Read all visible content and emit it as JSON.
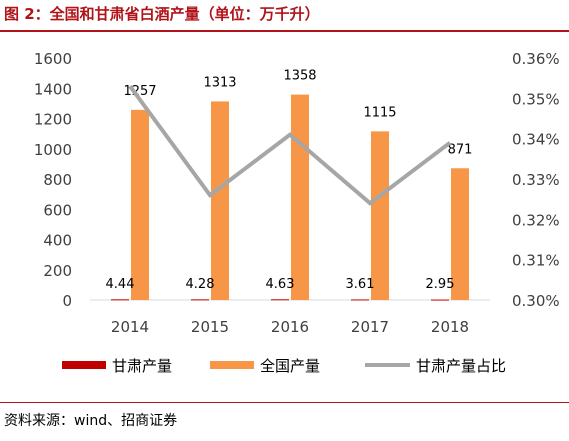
{
  "figure": {
    "title": "图 2：全国和甘肃省白酒产量（单位：万千升）",
    "source": "资料来源：wind、招商证券"
  },
  "colors": {
    "gansu_bar": "#c00000",
    "national_bar": "#f79646",
    "ratio_line": "#a6a6a6",
    "axis_text": "#404040",
    "title": "#b0141a"
  },
  "chart_data": {
    "type": "bar",
    "categories": [
      "2014",
      "2015",
      "2016",
      "2017",
      "2018"
    ],
    "series": [
      {
        "name": "甘肃产量",
        "type": "bar",
        "axis": "left",
        "values": [
          4.44,
          4.28,
          4.63,
          3.61,
          2.95
        ],
        "labels": [
          "4.44",
          "4.28",
          "4.63",
          "3.61",
          "2.95"
        ]
      },
      {
        "name": "全国产量",
        "type": "bar",
        "axis": "left",
        "values": [
          1257,
          1313,
          1358,
          1115,
          871
        ],
        "labels": [
          "1257",
          "1313",
          "1358",
          "1115",
          "871"
        ]
      },
      {
        "name": "甘肃产量占比",
        "type": "line",
        "axis": "right",
        "values": [
          0.00353,
          0.00326,
          0.00341,
          0.00324,
          0.00339
        ]
      }
    ],
    "y_left": {
      "min": 0,
      "max": 1600,
      "ticks": [
        "0",
        "200",
        "400",
        "600",
        "800",
        "1000",
        "1200",
        "1400",
        "1600"
      ]
    },
    "y_right": {
      "min": 0.003,
      "max": 0.0036,
      "ticks": [
        "0.30%",
        "0.31%",
        "0.32%",
        "0.33%",
        "0.34%",
        "0.35%",
        "0.36%"
      ]
    },
    "grid": false,
    "legend": "bottom"
  }
}
